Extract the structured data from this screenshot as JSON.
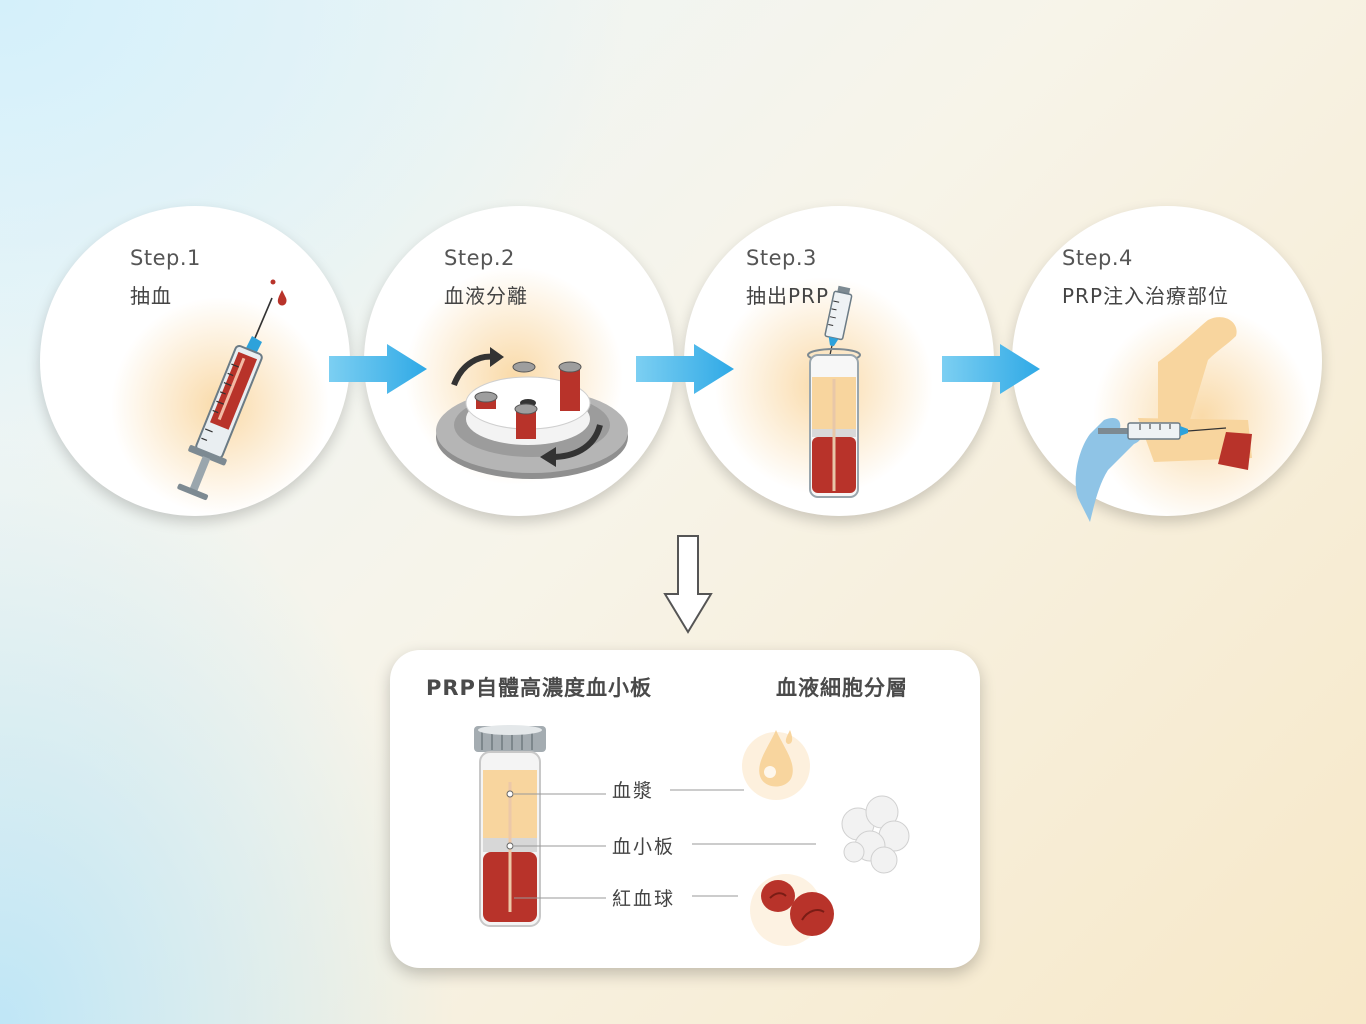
{
  "steps": [
    {
      "title": "Step.1",
      "subtitle": "抽血",
      "icon": "syringe-icon"
    },
    {
      "title": "Step.2",
      "subtitle": "血液分離",
      "icon": "centrifuge-icon"
    },
    {
      "title": "Step.3",
      "subtitle": "抽出PRP",
      "icon": "tube-syringe-icon"
    },
    {
      "title": "Step.4",
      "subtitle": "PRP注入治療部位",
      "icon": "injection-arm-icon"
    }
  ],
  "panel": {
    "left_heading": "PRP自體高濃度血小板",
    "right_heading": "血液細胞分層",
    "layers": [
      {
        "label": "血漿",
        "icon": "plasma-drop-icon"
      },
      {
        "label": "血小板",
        "icon": "platelet-cluster-icon"
      },
      {
        "label": "紅血球",
        "icon": "red-blood-cell-icon"
      }
    ]
  },
  "colors": {
    "arrow_blue": "#3ab4ea",
    "blood_red": "#b8332a",
    "plasma": "#f8d59e",
    "glove_blue": "#8fc4e6"
  }
}
